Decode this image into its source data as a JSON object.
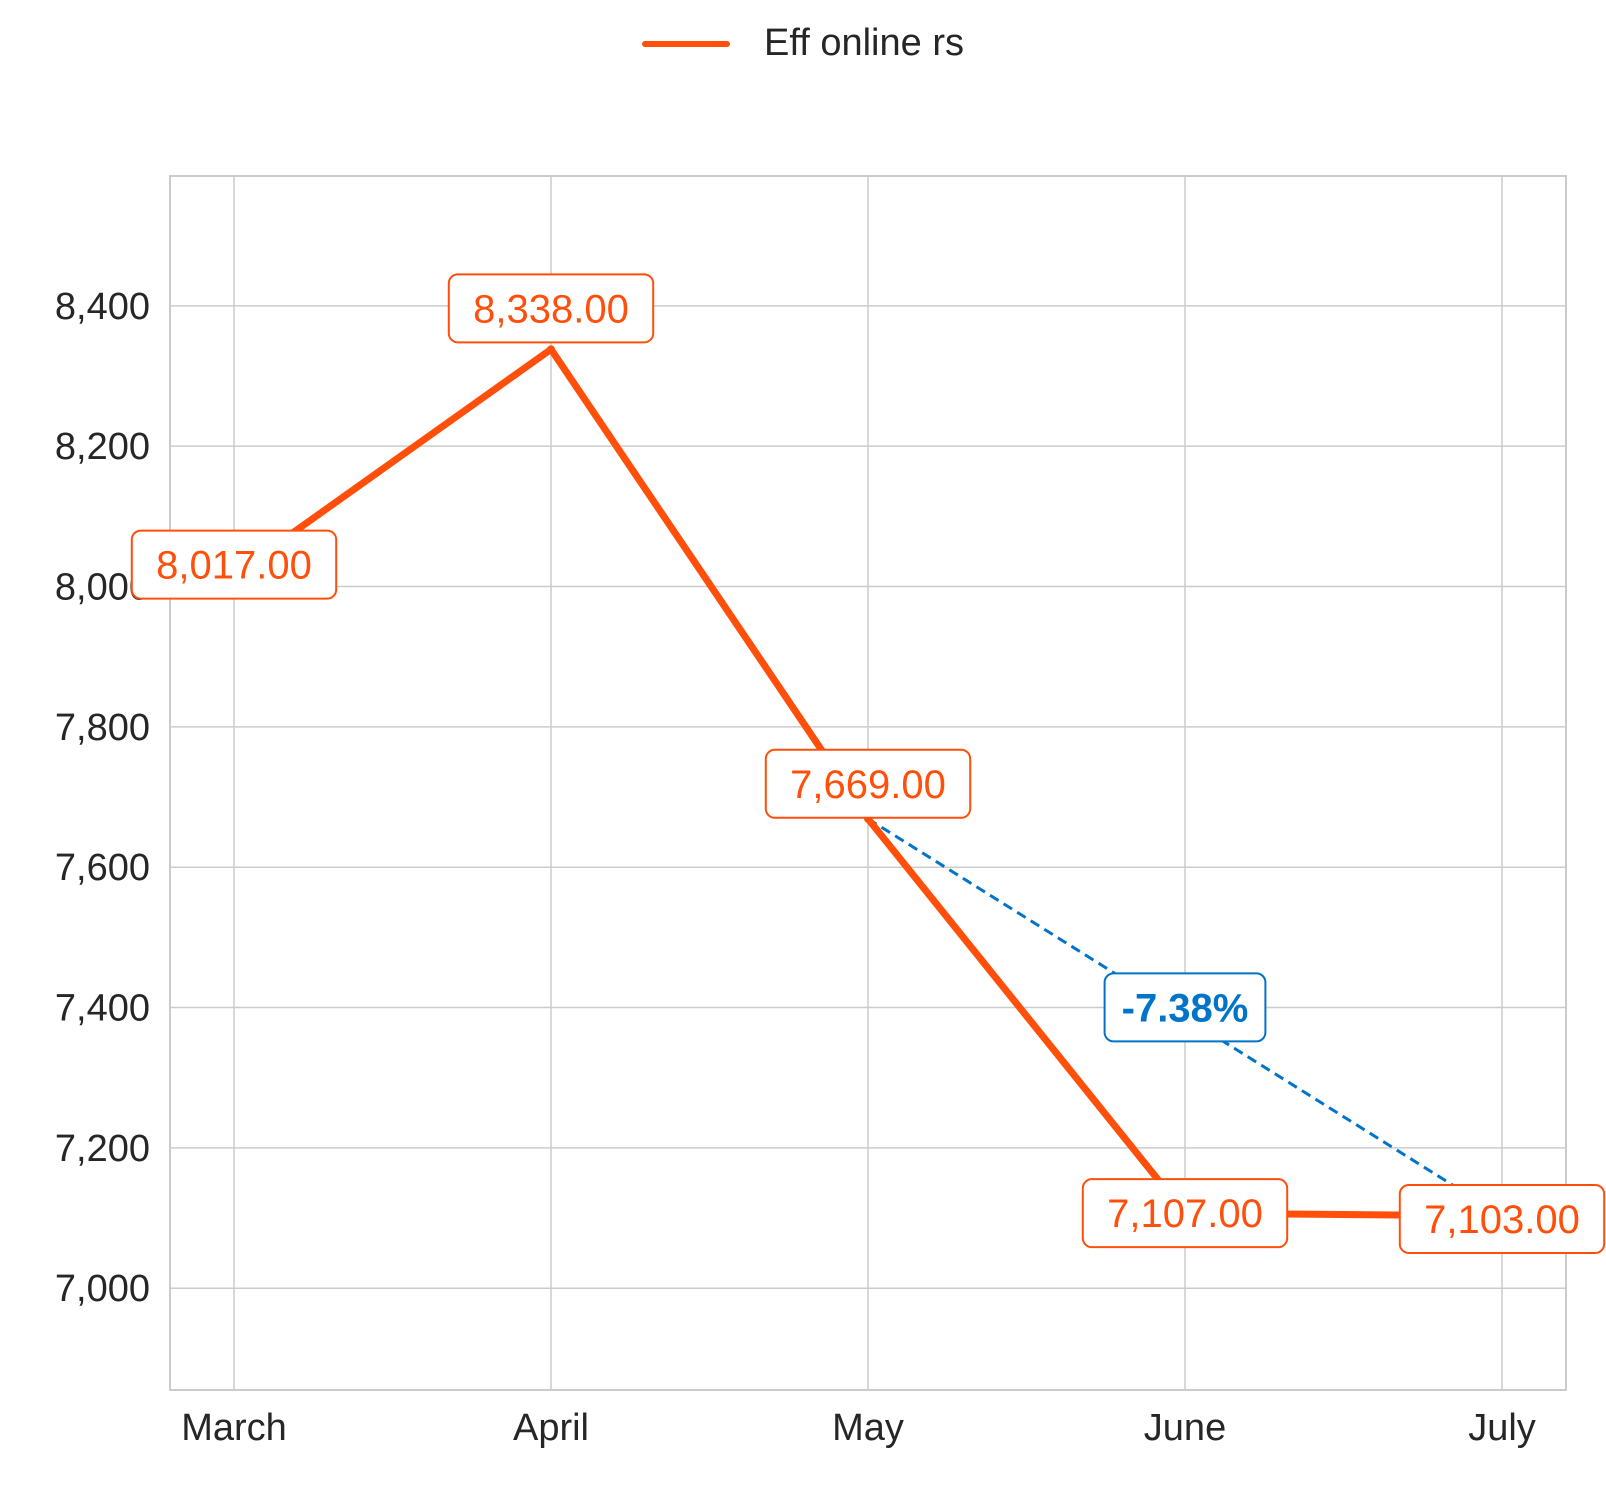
{
  "chart_data": {
    "type": "line",
    "categories": [
      "March",
      "April",
      "May",
      "June",
      "July"
    ],
    "series": [
      {
        "name": "Eff online rs",
        "color": "#ff4f0a",
        "values": [
          8017,
          8338,
          7669,
          7107,
          7103
        ],
        "labels": [
          "8,017.00",
          "8,338.00",
          "7,669.00",
          "7,107.00",
          "7,103.00"
        ]
      }
    ],
    "y_ticks": [
      7000,
      7200,
      7400,
      7600,
      7800,
      8000,
      8200,
      8400
    ],
    "y_tick_labels": [
      "7,000",
      "7,200",
      "7,400",
      "7,600",
      "7,800",
      "8,000",
      "8,200",
      "8,400"
    ],
    "ylim": [
      6855,
      8585
    ],
    "grid": true,
    "legend_position": "top-center",
    "annotation": {
      "type": "trend",
      "from_category": "May",
      "to_category": "July",
      "text": "-7.38%",
      "color": "#0074c8"
    }
  }
}
